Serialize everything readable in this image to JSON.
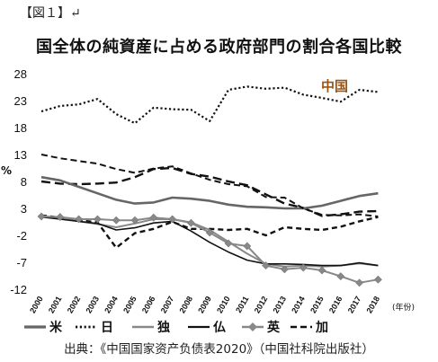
{
  "figure_label": "【図１】↵",
  "source_text": "出典：《中国国家资产负债表2020》（中国社科院出版社）",
  "chart_data": {
    "type": "line",
    "title": "国全体の純資産に占める政府部門の割合各国比較",
    "ylabel": "%",
    "xlabel": "",
    "x_unit": "(年份)",
    "x": [
      "2000",
      "2001",
      "2002",
      "2003",
      "2004",
      "2005",
      "2006",
      "2007",
      "2008",
      "2009",
      "2010",
      "2011",
      "2012",
      "2013",
      "2014",
      "2015",
      "2016",
      "2017",
      "2018"
    ],
    "yticks": [
      28,
      23,
      18,
      13,
      8,
      3,
      -2,
      -7,
      -12
    ],
    "ylim": [
      -12,
      28
    ],
    "grid": false,
    "annotation": "中国",
    "series": [
      {
        "name": "米",
        "style": "solid-thick",
        "color": "#666666",
        "values": [
          8.8,
          8.2,
          7.0,
          5.8,
          4.6,
          3.9,
          4.1,
          5.0,
          4.8,
          4.4,
          3.7,
          3.3,
          3.2,
          3.0,
          3.0,
          3.5,
          4.4,
          5.3,
          5.8
        ]
      },
      {
        "name": "日",
        "style": "dotted",
        "color": "#111111",
        "values": [
          21.0,
          22.0,
          22.3,
          23.3,
          20.5,
          18.8,
          21.7,
          21.4,
          21.3,
          19.2,
          25.0,
          25.6,
          25.2,
          25.4,
          24.1,
          23.5,
          22.8,
          25.0,
          24.6
        ]
      },
      {
        "name": "独",
        "style": "solid-thin",
        "color": "#888888",
        "values": [
          1.6,
          1.2,
          0.6,
          0.1,
          -0.5,
          0.2,
          1.0,
          1.0,
          0.4,
          -1.0,
          -3.2,
          -5.4,
          -7.3,
          -7.8,
          -7.6,
          -7.8,
          -7.6,
          -7.2,
          -7.6
        ]
      },
      {
        "name": "仏",
        "style": "solid-dark",
        "color": "#111111",
        "values": [
          1.4,
          1.0,
          0.6,
          0.2,
          -1.0,
          -0.6,
          0.3,
          0.6,
          -1.2,
          -3.3,
          -5.1,
          -6.6,
          -7.3,
          -7.3,
          -7.4,
          -7.6,
          -7.6,
          -7.1,
          -7.6
        ]
      },
      {
        "name": "英",
        "style": "diamond",
        "color": "#888888",
        "values": [
          1.5,
          1.4,
          1.0,
          1.0,
          0.8,
          0.8,
          1.3,
          1.0,
          0.3,
          -1.5,
          -3.5,
          -4.0,
          -7.6,
          -8.3,
          -8.0,
          -8.5,
          -9.6,
          -10.8,
          -10.2
        ]
      },
      {
        "name": "加",
        "style": "dashed",
        "color": "#111111",
        "values": [
          13.0,
          12.3,
          11.8,
          11.3,
          10.3,
          9.6,
          10.4,
          10.8,
          9.5,
          8.3,
          7.5,
          7.1,
          5.1,
          5.0,
          3.0,
          1.8,
          1.7,
          1.9,
          1.5
        ]
      }
    ],
    "extra_lines": [
      {
        "style": "dashed-thick",
        "color": "#111111",
        "values": [
          1.7,
          1.3,
          0.8,
          0.4,
          -4.3,
          -1.6,
          -0.8,
          0.5,
          -0.8,
          -0.8,
          -1.0,
          -0.8,
          -2.0,
          -0.5,
          -0.8,
          -1.0,
          -0.4,
          0.6,
          1.4
        ]
      },
      {
        "style": "dashed-long",
        "color": "#111111",
        "values": [
          8.0,
          7.6,
          7.5,
          7.6,
          7.8,
          8.8,
          10.3,
          10.5,
          9.4,
          8.9,
          8.0,
          7.3,
          5.6,
          3.9,
          3.1,
          1.6,
          1.9,
          2.4,
          2.5
        ]
      }
    ]
  }
}
